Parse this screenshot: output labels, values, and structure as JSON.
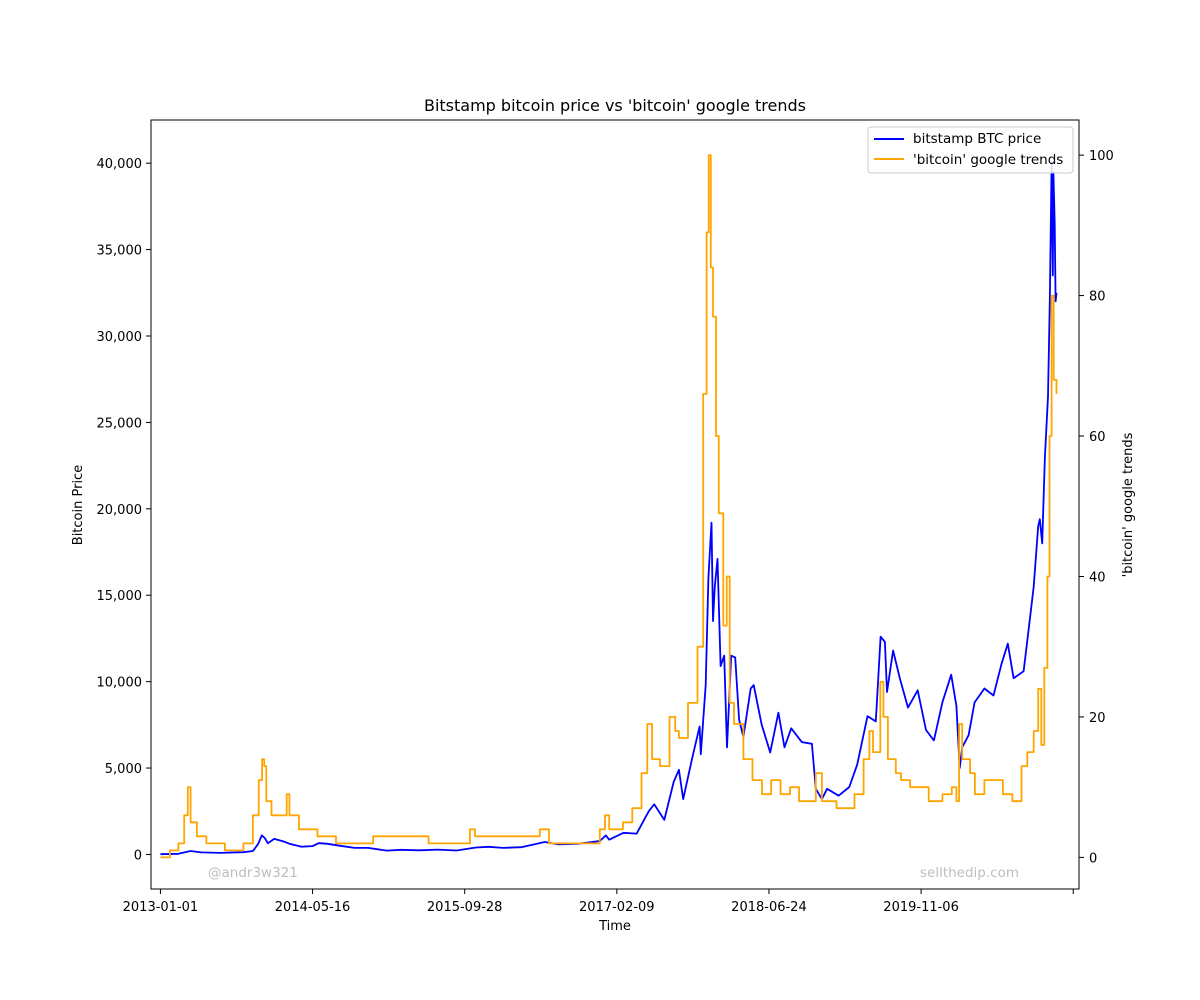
{
  "chart_data": {
    "type": "line",
    "title": "Bitstamp bitcoin price vs 'bitcoin' google trends",
    "xlabel": "Time",
    "ylabel": "Bitcoin Price",
    "y2label": "'bitcoin' google trends",
    "x_range": [
      "2012-12-01",
      "2021-04-08"
    ],
    "ylim": [
      -2000,
      42500
    ],
    "y2lim": [
      -4.5,
      105
    ],
    "x_ticks": [
      "2013-01-01",
      "2014-05-16",
      "2015-09-28",
      "2017-02-09",
      "2018-06-24",
      "2019-11-06",
      "2021-03-20"
    ],
    "x_tick_labels": [
      "2013-01-01",
      "2014-05-16",
      "2015-09-28",
      "2017-02-09",
      "2018-06-24",
      "2019-11-06",
      ""
    ],
    "y_ticks": [
      0,
      5000,
      10000,
      15000,
      20000,
      25000,
      30000,
      35000,
      40000
    ],
    "y_tick_labels": [
      "0",
      "5,000",
      "10,000",
      "15,000",
      "20,000",
      "25,000",
      "30,000",
      "35,000",
      "40,000"
    ],
    "y2_ticks": [
      0,
      20,
      40,
      60,
      80,
      100
    ],
    "y2_tick_labels": [
      "0",
      "20",
      "40",
      "60",
      "80",
      "100"
    ],
    "legend_position": "top-right",
    "grid": false,
    "series": [
      {
        "name": "bitstamp BTC price",
        "axis": "left",
        "color": "#0000ff",
        "points": [
          [
            "2013-01-01",
            13
          ],
          [
            "2013-03-01",
            35
          ],
          [
            "2013-04-10",
            200
          ],
          [
            "2013-05-15",
            120
          ],
          [
            "2013-07-15",
            90
          ],
          [
            "2013-10-01",
            130
          ],
          [
            "2013-11-01",
            200
          ],
          [
            "2013-11-18",
            600
          ],
          [
            "2013-11-30",
            1100
          ],
          [
            "2013-12-10",
            950
          ],
          [
            "2013-12-20",
            650
          ],
          [
            "2014-01-10",
            900
          ],
          [
            "2014-02-10",
            750
          ],
          [
            "2014-03-01",
            620
          ],
          [
            "2014-04-10",
            450
          ],
          [
            "2014-05-16",
            480
          ],
          [
            "2014-06-05",
            650
          ],
          [
            "2014-07-01",
            620
          ],
          [
            "2014-08-15",
            500
          ],
          [
            "2014-10-01",
            380
          ],
          [
            "2014-11-15",
            380
          ],
          [
            "2015-01-15",
            220
          ],
          [
            "2015-03-01",
            270
          ],
          [
            "2015-05-01",
            240
          ],
          [
            "2015-07-01",
            280
          ],
          [
            "2015-09-01",
            230
          ],
          [
            "2015-11-04",
            400
          ],
          [
            "2015-12-15",
            440
          ],
          [
            "2016-02-01",
            380
          ],
          [
            "2016-04-01",
            420
          ],
          [
            "2016-06-17",
            720
          ],
          [
            "2016-08-01",
            580
          ],
          [
            "2016-10-01",
            610
          ],
          [
            "2016-12-15",
            780
          ],
          [
            "2017-01-04",
            1100
          ],
          [
            "2017-01-15",
            850
          ],
          [
            "2017-03-03",
            1250
          ],
          [
            "2017-04-15",
            1200
          ],
          [
            "2017-05-25",
            2500
          ],
          [
            "2017-06-12",
            2900
          ],
          [
            "2017-07-15",
            2000
          ],
          [
            "2017-08-15",
            4200
          ],
          [
            "2017-09-01",
            4900
          ],
          [
            "2017-09-15",
            3200
          ],
          [
            "2017-10-15",
            5600
          ],
          [
            "2017-11-08",
            7400
          ],
          [
            "2017-11-12",
            5800
          ],
          [
            "2017-11-28",
            9800
          ],
          [
            "2017-12-07",
            16000
          ],
          [
            "2017-12-17",
            19200
          ],
          [
            "2017-12-22",
            13500
          ],
          [
            "2017-12-28",
            15500
          ],
          [
            "2018-01-06",
            17100
          ],
          [
            "2018-01-16",
            10900
          ],
          [
            "2018-01-28",
            11500
          ],
          [
            "2018-02-06",
            6200
          ],
          [
            "2018-02-20",
            11500
          ],
          [
            "2018-03-05",
            11400
          ],
          [
            "2018-03-18",
            7800
          ],
          [
            "2018-04-01",
            6800
          ],
          [
            "2018-04-25",
            9600
          ],
          [
            "2018-05-05",
            9800
          ],
          [
            "2018-05-31",
            7500
          ],
          [
            "2018-06-28",
            5900
          ],
          [
            "2018-07-25",
            8200
          ],
          [
            "2018-08-14",
            6200
          ],
          [
            "2018-09-05",
            7300
          ],
          [
            "2018-10-10",
            6500
          ],
          [
            "2018-11-12",
            6400
          ],
          [
            "2018-11-25",
            3800
          ],
          [
            "2018-12-15",
            3200
          ],
          [
            "2019-01-01",
            3800
          ],
          [
            "2019-02-08",
            3400
          ],
          [
            "2019-03-15",
            3900
          ],
          [
            "2019-04-10",
            5200
          ],
          [
            "2019-05-14",
            8000
          ],
          [
            "2019-06-10",
            7700
          ],
          [
            "2019-06-26",
            12600
          ],
          [
            "2019-07-10",
            12300
          ],
          [
            "2019-07-17",
            9400
          ],
          [
            "2019-08-06",
            11800
          ],
          [
            "2019-08-28",
            10200
          ],
          [
            "2019-09-24",
            8500
          ],
          [
            "2019-10-26",
            9500
          ],
          [
            "2019-11-22",
            7200
          ],
          [
            "2019-12-18",
            6600
          ],
          [
            "2020-01-15",
            8800
          ],
          [
            "2020-02-13",
            10400
          ],
          [
            "2020-03-01",
            8600
          ],
          [
            "2020-03-12",
            5000
          ],
          [
            "2020-03-20",
            6200
          ],
          [
            "2020-04-10",
            6900
          ],
          [
            "2020-04-30",
            8800
          ],
          [
            "2020-06-01",
            9600
          ],
          [
            "2020-07-01",
            9200
          ],
          [
            "2020-07-27",
            11000
          ],
          [
            "2020-08-17",
            12200
          ],
          [
            "2020-09-05",
            10200
          ],
          [
            "2020-10-08",
            10600
          ],
          [
            "2020-10-25",
            13100
          ],
          [
            "2020-11-10",
            15500
          ],
          [
            "2020-11-25",
            19000
          ],
          [
            "2020-11-30",
            19400
          ],
          [
            "2020-12-08",
            18000
          ],
          [
            "2020-12-17",
            23000
          ],
          [
            "2020-12-27",
            26500
          ],
          [
            "2021-01-02",
            32000
          ],
          [
            "2021-01-08",
            40000
          ],
          [
            "2021-01-12",
            33500
          ],
          [
            "2021-01-14",
            39500
          ],
          [
            "2021-01-18",
            36500
          ],
          [
            "2021-01-21",
            32000
          ],
          [
            "2021-01-24",
            32500
          ]
        ]
      },
      {
        "name": "'bitcoin' google trends",
        "axis": "right",
        "color": "#ffa500",
        "step": true,
        "points": [
          [
            "2013-01-01",
            0
          ],
          [
            "2013-02-01",
            1
          ],
          [
            "2013-03-01",
            2
          ],
          [
            "2013-03-20",
            6
          ],
          [
            "2013-04-01",
            10
          ],
          [
            "2013-04-10",
            5
          ],
          [
            "2013-05-01",
            3
          ],
          [
            "2013-06-01",
            2
          ],
          [
            "2013-08-01",
            1
          ],
          [
            "2013-10-01",
            2
          ],
          [
            "2013-11-01",
            6
          ],
          [
            "2013-11-20",
            11
          ],
          [
            "2013-12-01",
            14
          ],
          [
            "2013-12-08",
            13
          ],
          [
            "2013-12-15",
            8
          ],
          [
            "2014-01-01",
            6
          ],
          [
            "2014-02-01",
            6
          ],
          [
            "2014-02-20",
            9
          ],
          [
            "2014-03-01",
            6
          ],
          [
            "2014-04-01",
            4
          ],
          [
            "2014-06-01",
            3
          ],
          [
            "2014-08-01",
            2
          ],
          [
            "2014-12-01",
            3
          ],
          [
            "2015-06-01",
            2
          ],
          [
            "2015-10-15",
            4
          ],
          [
            "2015-11-01",
            3
          ],
          [
            "2016-01-01",
            3
          ],
          [
            "2016-06-01",
            4
          ],
          [
            "2016-07-01",
            2
          ],
          [
            "2016-11-01",
            2
          ],
          [
            "2016-12-15",
            4
          ],
          [
            "2017-01-01",
            6
          ],
          [
            "2017-01-15",
            4
          ],
          [
            "2017-03-01",
            5
          ],
          [
            "2017-04-01",
            7
          ],
          [
            "2017-05-01",
            12
          ],
          [
            "2017-05-20",
            19
          ],
          [
            "2017-06-05",
            14
          ],
          [
            "2017-07-01",
            13
          ],
          [
            "2017-08-01",
            20
          ],
          [
            "2017-08-20",
            18
          ],
          [
            "2017-09-01",
            17
          ],
          [
            "2017-10-01",
            22
          ],
          [
            "2017-11-01",
            30
          ],
          [
            "2017-11-20",
            66
          ],
          [
            "2017-12-01",
            89
          ],
          [
            "2017-12-08",
            100
          ],
          [
            "2017-12-15",
            84
          ],
          [
            "2017-12-22",
            77
          ],
          [
            "2018-01-01",
            60
          ],
          [
            "2018-01-10",
            49
          ],
          [
            "2018-01-25",
            33
          ],
          [
            "2018-02-05",
            40
          ],
          [
            "2018-02-15",
            22
          ],
          [
            "2018-03-01",
            19
          ],
          [
            "2018-04-01",
            14
          ],
          [
            "2018-05-01",
            11
          ],
          [
            "2018-06-01",
            9
          ],
          [
            "2018-07-01",
            11
          ],
          [
            "2018-08-01",
            9
          ],
          [
            "2018-09-01",
            10
          ],
          [
            "2018-10-01",
            8
          ],
          [
            "2018-11-01",
            8
          ],
          [
            "2018-11-25",
            12
          ],
          [
            "2018-12-15",
            8
          ],
          [
            "2019-02-01",
            7
          ],
          [
            "2019-04-01",
            9
          ],
          [
            "2019-05-01",
            14
          ],
          [
            "2019-05-20",
            18
          ],
          [
            "2019-06-01",
            15
          ],
          [
            "2019-06-25",
            25
          ],
          [
            "2019-07-05",
            20
          ],
          [
            "2019-07-20",
            14
          ],
          [
            "2019-08-15",
            12
          ],
          [
            "2019-09-01",
            11
          ],
          [
            "2019-10-01",
            10
          ],
          [
            "2019-12-01",
            8
          ],
          [
            "2020-01-15",
            9
          ],
          [
            "2020-02-15",
            10
          ],
          [
            "2020-03-01",
            8
          ],
          [
            "2020-03-10",
            19
          ],
          [
            "2020-03-20",
            14
          ],
          [
            "2020-04-15",
            12
          ],
          [
            "2020-05-01",
            9
          ],
          [
            "2020-06-01",
            11
          ],
          [
            "2020-08-01",
            9
          ],
          [
            "2020-09-01",
            8
          ],
          [
            "2020-10-01",
            13
          ],
          [
            "2020-10-20",
            15
          ],
          [
            "2020-11-10",
            18
          ],
          [
            "2020-11-25",
            24
          ],
          [
            "2020-12-05",
            16
          ],
          [
            "2020-12-15",
            27
          ],
          [
            "2020-12-25",
            40
          ],
          [
            "2021-01-01",
            60
          ],
          [
            "2021-01-08",
            80
          ],
          [
            "2021-01-15",
            68
          ],
          [
            "2021-01-24",
            66
          ]
        ]
      }
    ],
    "watermarks": [
      "@andr3w321",
      "sellthedip.com"
    ]
  }
}
